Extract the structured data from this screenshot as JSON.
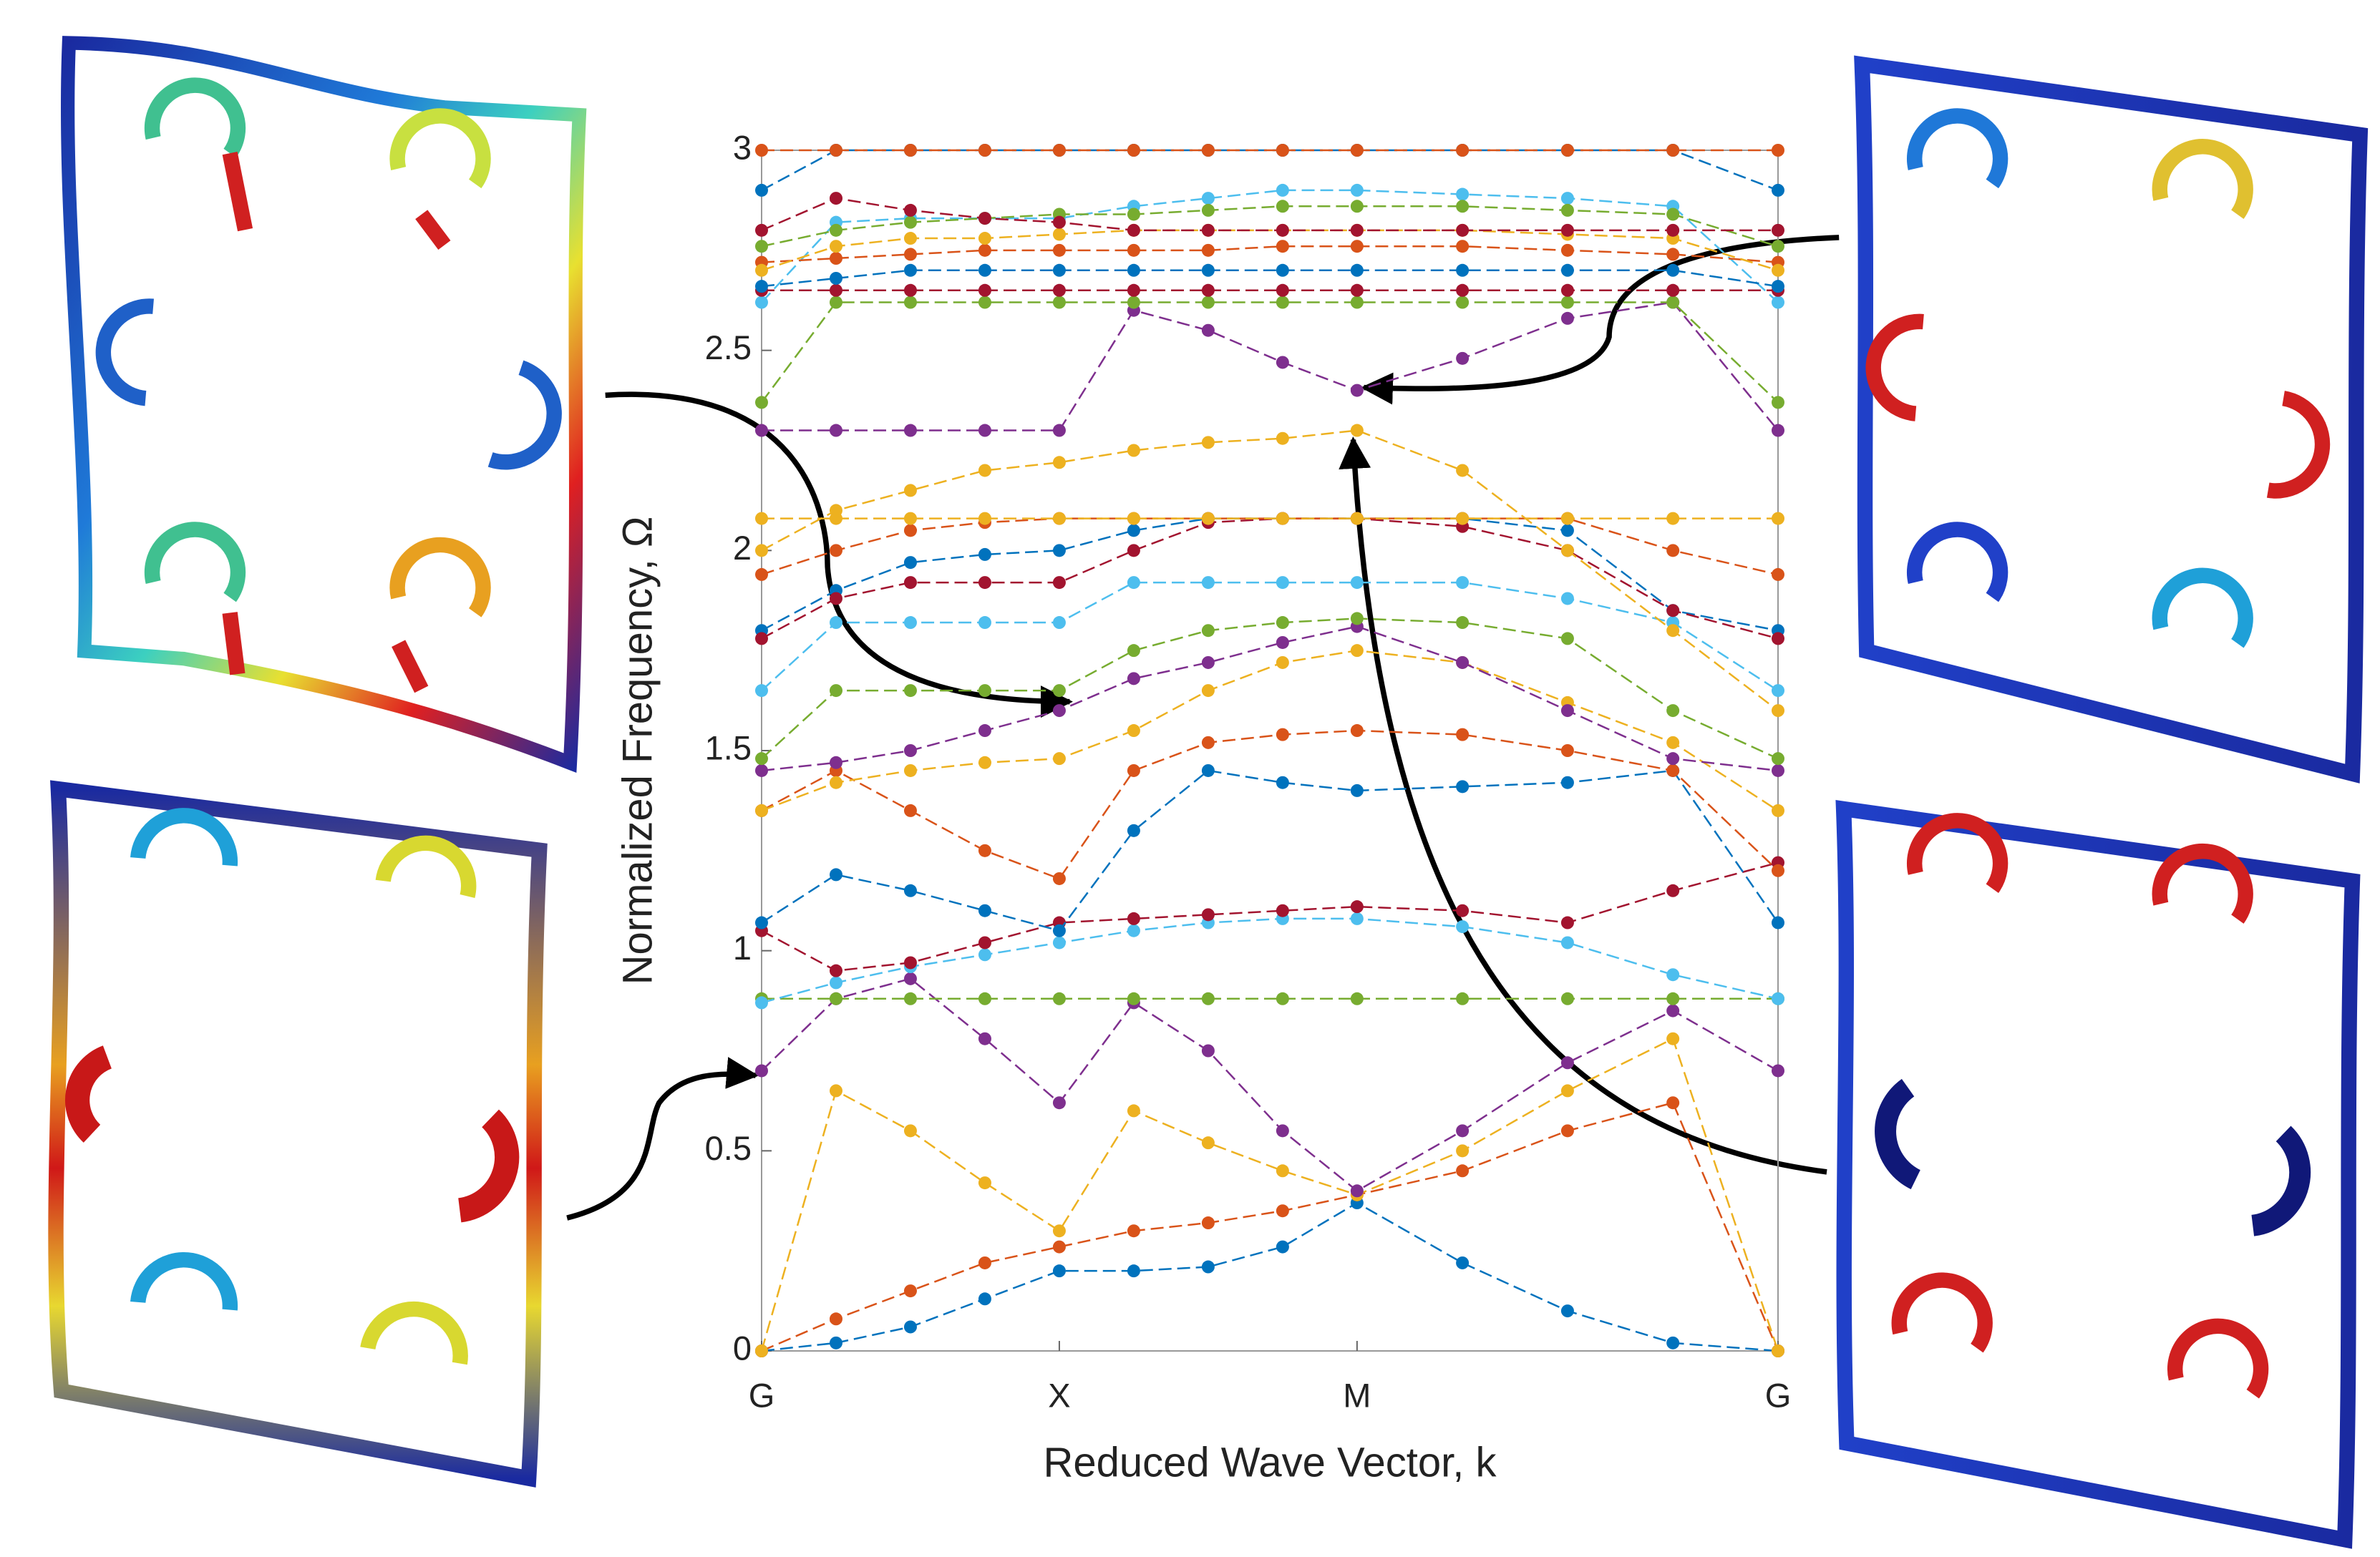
{
  "chart_data": {
    "type": "line",
    "xlabel": "Reduced Wave Vector, k",
    "ylabel": "Normalized Frequency, Ω",
    "xlim": [
      0,
      3.414
    ],
    "ylim": [
      0,
      3
    ],
    "xticks": [
      {
        "value": 0,
        "label": "G"
      },
      {
        "value": 1,
        "label": "X"
      },
      {
        "value": 2,
        "label": "M"
      },
      {
        "value": 3.414,
        "label": "G"
      }
    ],
    "yticks": [
      0,
      0.5,
      1,
      1.5,
      2,
      2.5,
      3
    ],
    "x": [
      0,
      0.25,
      0.5,
      0.75,
      1,
      1.25,
      1.5,
      1.75,
      2,
      2.354,
      2.707,
      3.061,
      3.414
    ],
    "series": [
      {
        "color": "#0072bd",
        "values": [
          0,
          0.02,
          0.06,
          0.13,
          0.2,
          0.2,
          0.21,
          0.26,
          0.37,
          0.22,
          0.1,
          0.02,
          0
        ]
      },
      {
        "color": "#d95319",
        "values": [
          0,
          0.08,
          0.15,
          0.22,
          0.26,
          0.3,
          0.32,
          0.35,
          0.39,
          0.45,
          0.55,
          0.62,
          0
        ]
      },
      {
        "color": "#edb120",
        "values": [
          0,
          0.65,
          0.55,
          0.42,
          0.3,
          0.6,
          0.52,
          0.45,
          0.39,
          0.5,
          0.65,
          0.78,
          0
        ]
      },
      {
        "color": "#7e2f8e",
        "values": [
          0.7,
          0.88,
          0.93,
          0.78,
          0.62,
          0.87,
          0.75,
          0.55,
          0.4,
          0.55,
          0.72,
          0.85,
          0.7
        ]
      },
      {
        "color": "#77ac30",
        "values": [
          0.88,
          0.88,
          0.88,
          0.88,
          0.88,
          0.88,
          0.88,
          0.88,
          0.88,
          0.88,
          0.88,
          0.88,
          0.88
        ]
      },
      {
        "color": "#4dbeee",
        "values": [
          0.87,
          0.92,
          0.96,
          0.99,
          1.02,
          1.05,
          1.07,
          1.08,
          1.08,
          1.06,
          1.02,
          0.94,
          0.88
        ]
      },
      {
        "color": "#a2142f",
        "values": [
          1.05,
          0.95,
          0.97,
          1.02,
          1.07,
          1.08,
          1.09,
          1.1,
          1.11,
          1.1,
          1.07,
          1.15,
          1.22
        ]
      },
      {
        "color": "#0072bd",
        "values": [
          1.07,
          1.19,
          1.15,
          1.1,
          1.05,
          1.3,
          1.45,
          1.42,
          1.4,
          1.41,
          1.42,
          1.45,
          1.07
        ]
      },
      {
        "color": "#d95319",
        "values": [
          1.35,
          1.45,
          1.35,
          1.25,
          1.18,
          1.45,
          1.52,
          1.54,
          1.55,
          1.54,
          1.5,
          1.45,
          1.2
        ]
      },
      {
        "color": "#edb120",
        "values": [
          1.35,
          1.42,
          1.45,
          1.47,
          1.48,
          1.55,
          1.65,
          1.72,
          1.75,
          1.72,
          1.62,
          1.52,
          1.35
        ]
      },
      {
        "color": "#7e2f8e",
        "values": [
          1.45,
          1.47,
          1.5,
          1.55,
          1.6,
          1.68,
          1.72,
          1.77,
          1.81,
          1.72,
          1.6,
          1.48,
          1.45
        ]
      },
      {
        "color": "#77ac30",
        "values": [
          1.48,
          1.65,
          1.65,
          1.65,
          1.65,
          1.75,
          1.8,
          1.82,
          1.83,
          1.82,
          1.78,
          1.6,
          1.48
        ]
      },
      {
        "color": "#4dbeee",
        "values": [
          1.65,
          1.82,
          1.82,
          1.82,
          1.82,
          1.92,
          1.92,
          1.92,
          1.92,
          1.92,
          1.88,
          1.82,
          1.65
        ]
      },
      {
        "color": "#0072bd",
        "values": [
          1.8,
          1.9,
          1.97,
          1.99,
          2.0,
          2.05,
          2.08,
          2.08,
          2.08,
          2.08,
          2.05,
          1.85,
          1.8
        ]
      },
      {
        "color": "#a2142f",
        "values": [
          1.78,
          1.88,
          1.92,
          1.92,
          1.92,
          2.0,
          2.07,
          2.08,
          2.08,
          2.06,
          2.0,
          1.85,
          1.78
        ]
      },
      {
        "color": "#d95319",
        "values": [
          1.94,
          2.0,
          2.05,
          2.07,
          2.08,
          2.08,
          2.08,
          2.08,
          2.08,
          2.08,
          2.08,
          2.0,
          1.94
        ]
      },
      {
        "color": "#edb120",
        "values": [
          2.08,
          2.08,
          2.08,
          2.08,
          2.08,
          2.08,
          2.08,
          2.08,
          2.08,
          2.08,
          2.08,
          2.08,
          2.08
        ]
      },
      {
        "color": "#edb120",
        "values": [
          2.0,
          2.1,
          2.15,
          2.2,
          2.22,
          2.25,
          2.27,
          2.28,
          2.3,
          2.2,
          2.0,
          1.8,
          1.6
        ]
      },
      {
        "color": "#7e2f8e",
        "values": [
          2.3,
          2.3,
          2.3,
          2.3,
          2.3,
          2.6,
          2.55,
          2.47,
          2.4,
          2.48,
          2.58,
          2.62,
          2.3
        ]
      },
      {
        "color": "#77ac30",
        "values": [
          2.37,
          2.62,
          2.62,
          2.62,
          2.62,
          2.62,
          2.62,
          2.62,
          2.62,
          2.62,
          2.62,
          2.62,
          2.37
        ]
      },
      {
        "color": "#4dbeee",
        "values": [
          2.62,
          2.82,
          2.83,
          2.83,
          2.83,
          2.86,
          2.88,
          2.9,
          2.9,
          2.89,
          2.88,
          2.86,
          2.62
        ]
      },
      {
        "color": "#a2142f",
        "values": [
          2.65,
          2.65,
          2.65,
          2.65,
          2.65,
          2.65,
          2.65,
          2.65,
          2.65,
          2.65,
          2.65,
          2.65,
          2.65
        ]
      },
      {
        "color": "#0072bd",
        "values": [
          2.66,
          2.68,
          2.7,
          2.7,
          2.7,
          2.7,
          2.7,
          2.7,
          2.7,
          2.7,
          2.7,
          2.7,
          2.66
        ]
      },
      {
        "color": "#d95319",
        "values": [
          2.72,
          2.73,
          2.74,
          2.75,
          2.75,
          2.75,
          2.75,
          2.76,
          2.76,
          2.76,
          2.75,
          2.74,
          2.72
        ]
      },
      {
        "color": "#edb120",
        "values": [
          2.7,
          2.76,
          2.78,
          2.78,
          2.79,
          2.8,
          2.8,
          2.8,
          2.8,
          2.8,
          2.79,
          2.78,
          2.7
        ]
      },
      {
        "color": "#77ac30",
        "values": [
          2.76,
          2.8,
          2.82,
          2.83,
          2.84,
          2.84,
          2.85,
          2.86,
          2.86,
          2.86,
          2.85,
          2.84,
          2.76
        ]
      },
      {
        "color": "#a2142f",
        "values": [
          2.8,
          2.88,
          2.85,
          2.83,
          2.82,
          2.8,
          2.8,
          2.8,
          2.8,
          2.8,
          2.8,
          2.8,
          2.8
        ]
      },
      {
        "color": "#0072bd",
        "values": [
          2.9,
          3,
          3,
          3,
          3,
          3,
          3,
          3,
          3,
          3,
          3,
          3,
          2.9
        ]
      },
      {
        "color": "#d95319",
        "values": [
          3,
          3,
          3,
          3,
          3,
          3,
          3,
          3,
          3,
          3,
          3,
          3,
          3
        ]
      }
    ]
  }
}
